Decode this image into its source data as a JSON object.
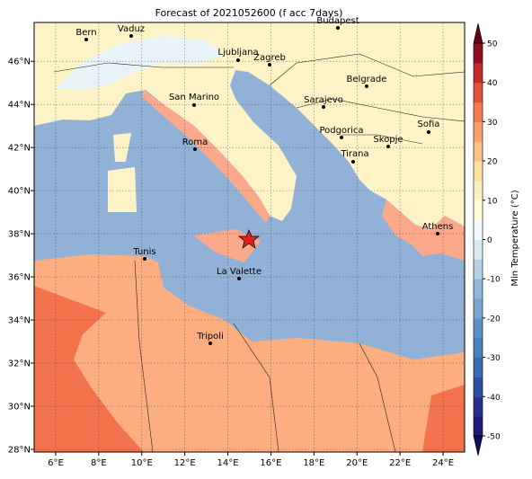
{
  "map": {
    "title": "Forecast of 2021052600 (f acc 7days)",
    "xlim": [
      5,
      25
    ],
    "ylim": [
      27.875,
      47.8
    ],
    "xticks": [
      {
        "value": 6,
        "label": "6°E"
      },
      {
        "value": 8,
        "label": "8°E"
      },
      {
        "value": 10,
        "label": "10°E"
      },
      {
        "value": 12,
        "label": "12°E"
      },
      {
        "value": 14,
        "label": "14°E"
      },
      {
        "value": 16,
        "label": "16°E"
      },
      {
        "value": 18,
        "label": "18°E"
      },
      {
        "value": 20,
        "label": "20°E"
      },
      {
        "value": 22,
        "label": "22°E"
      },
      {
        "value": 24,
        "label": "24°E"
      }
    ],
    "yticks": [
      {
        "value": 28,
        "label": "28°N"
      },
      {
        "value": 30,
        "label": "30°N"
      },
      {
        "value": 32,
        "label": "32°N"
      },
      {
        "value": 34,
        "label": "34°N"
      },
      {
        "value": 36,
        "label": "36°N"
      },
      {
        "value": 38,
        "label": "38°N"
      },
      {
        "value": 40,
        "label": "40°N"
      },
      {
        "value": 42,
        "label": "42°N"
      },
      {
        "value": 44,
        "label": "44°N"
      },
      {
        "value": 46,
        "label": "46°N"
      }
    ],
    "cities": [
      "Bern",
      "Vaduz",
      "Budapest",
      "Ljubljana",
      "Zagreb",
      "Belgrade",
      "San Marino",
      "Sarajevo",
      "Podgorica",
      "Sofia",
      "Roma",
      "Skopje",
      "Tirana",
      "Athens",
      "Tunis",
      "La Valette",
      "Tripoli"
    ],
    "colorbar": {
      "label": "Min Temperature (°C)",
      "lim": [
        -50,
        50
      ],
      "ticks": [
        -50,
        -40,
        -30,
        -20,
        -10,
        0,
        10,
        20,
        30,
        40,
        50
      ],
      "colors": [
        "#1c1c78",
        "#262e8f",
        "#2f4fa3",
        "#3a6aaf",
        "#4a80bb",
        "#5d92c6",
        "#78a6d0",
        "#91b6da",
        "#b3d0e6",
        "#d8ebf3",
        "#f2f9fa",
        "#fefbd8",
        "#fdf0c0",
        "#fde0a0",
        "#fdbf84",
        "#fba06b",
        "#f47a50",
        "#e0503a",
        "#c22a2a",
        "#930d20"
      ],
      "under": "#0e0e5e",
      "over": "#6b0015"
    }
  }
}
